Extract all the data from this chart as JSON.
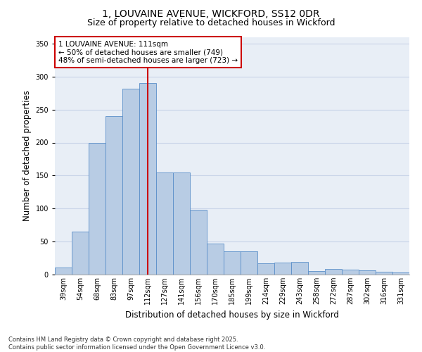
{
  "title_line1": "1, LOUVAINE AVENUE, WICKFORD, SS12 0DR",
  "title_line2": "Size of property relative to detached houses in Wickford",
  "xlabel": "Distribution of detached houses by size in Wickford",
  "ylabel": "Number of detached properties",
  "categories": [
    "39sqm",
    "54sqm",
    "68sqm",
    "83sqm",
    "97sqm",
    "112sqm",
    "127sqm",
    "141sqm",
    "156sqm",
    "170sqm",
    "185sqm",
    "199sqm",
    "214sqm",
    "229sqm",
    "243sqm",
    "258sqm",
    "272sqm",
    "287sqm",
    "302sqm",
    "316sqm",
    "331sqm"
  ],
  "values": [
    11,
    65,
    200,
    240,
    282,
    290,
    155,
    155,
    98,
    47,
    35,
    35,
    17,
    18,
    19,
    5,
    9,
    8,
    6,
    4,
    3
  ],
  "bar_color": "#b8cce4",
  "bar_edge_color": "#5b8fc9",
  "vline_index": 5,
  "vline_color": "#cc0000",
  "annotation_text": "1 LOUVAINE AVENUE: 111sqm\n← 50% of detached houses are smaller (749)\n48% of semi-detached houses are larger (723) →",
  "annotation_box_color": "#cc0000",
  "ylim": [
    0,
    360
  ],
  "yticks": [
    0,
    50,
    100,
    150,
    200,
    250,
    300,
    350
  ],
  "grid_color": "#c8d4e8",
  "bg_color": "#e8eef6",
  "footer_text": "Contains HM Land Registry data © Crown copyright and database right 2025.\nContains public sector information licensed under the Open Government Licence v3.0.",
  "title_fontsize": 10,
  "subtitle_fontsize": 9,
  "axis_label_fontsize": 8.5,
  "tick_fontsize": 7,
  "annotation_fontsize": 7.5,
  "footer_fontsize": 6
}
